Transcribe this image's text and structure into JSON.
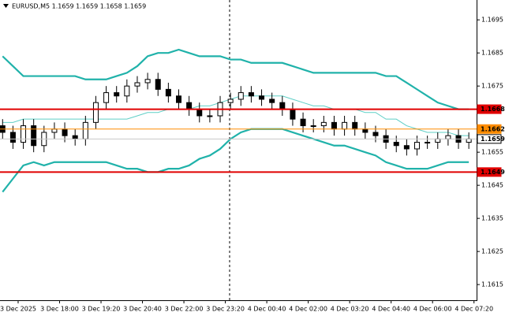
{
  "chart_data": {
    "type": "candlestick",
    "title": "EURUSD,M5  1.1659 1.1659 1.1658 1.1659",
    "x": [
      0,
      4,
      8,
      12,
      16,
      20,
      24,
      28,
      32,
      36,
      40,
      44,
      48,
      52,
      56,
      60,
      64,
      68,
      72,
      76,
      80,
      84,
      88,
      92,
      96,
      100,
      104,
      108,
      112,
      116,
      120,
      124,
      128,
      132,
      136,
      140,
      144,
      148,
      152,
      156,
      160,
      164,
      168,
      172,
      176,
      180
    ],
    "open": [
      1.1663,
      1.1661,
      1.1658,
      1.1663,
      1.1657,
      1.1661,
      1.1662,
      1.166,
      1.1659,
      1.1664,
      1.167,
      1.1673,
      1.1672,
      1.1675,
      1.1676,
      1.1677,
      1.1674,
      1.1672,
      1.167,
      1.1668,
      1.1666,
      1.1666,
      1.167,
      1.1671,
      1.1673,
      1.1672,
      1.1671,
      1.167,
      1.1668,
      1.1665,
      1.1663,
      1.1663,
      1.1664,
      1.1662,
      1.1664,
      1.1662,
      1.1661,
      1.166,
      1.1658,
      1.1657,
      1.1656,
      1.1658,
      1.1658,
      1.1659,
      1.166,
      1.1658
    ],
    "high": [
      1.1665,
      1.1663,
      1.1665,
      1.1665,
      1.1663,
      1.1664,
      1.1664,
      1.1662,
      1.1666,
      1.1672,
      1.1675,
      1.1675,
      1.1677,
      1.1678,
      1.1679,
      1.1679,
      1.1676,
      1.1674,
      1.1672,
      1.167,
      1.1668,
      1.1672,
      1.1673,
      1.1675,
      1.1675,
      1.1674,
      1.1673,
      1.1672,
      1.167,
      1.1667,
      1.1665,
      1.1666,
      1.1666,
      1.1666,
      1.1666,
      1.1664,
      1.1663,
      1.1662,
      1.166,
      1.1659,
      1.166,
      1.166,
      1.1661,
      1.1662,
      1.1662,
      1.1661
    ],
    "low": [
      1.1659,
      1.1656,
      1.1656,
      1.1655,
      1.1655,
      1.1659,
      1.1658,
      1.1657,
      1.1657,
      1.1662,
      1.1668,
      1.167,
      1.167,
      1.1673,
      1.1674,
      1.1672,
      1.167,
      1.1668,
      1.1666,
      1.1664,
      1.1664,
      1.1664,
      1.1668,
      1.1669,
      1.167,
      1.1669,
      1.1668,
      1.1666,
      1.1663,
      1.1661,
      1.1661,
      1.1661,
      1.166,
      1.166,
      1.166,
      1.1659,
      1.1658,
      1.1656,
      1.1655,
      1.1654,
      1.1654,
      1.1656,
      1.1656,
      1.1657,
      1.1656,
      1.1656
    ],
    "close": [
      1.1661,
      1.1658,
      1.1663,
      1.1657,
      1.1661,
      1.1662,
      1.166,
      1.1659,
      1.1664,
      1.167,
      1.1673,
      1.1672,
      1.1675,
      1.1676,
      1.1677,
      1.1674,
      1.1672,
      1.167,
      1.1668,
      1.1666,
      1.1666,
      1.167,
      1.1671,
      1.1673,
      1.1672,
      1.1671,
      1.167,
      1.1668,
      1.1665,
      1.1663,
      1.1663,
      1.1664,
      1.1662,
      1.1664,
      1.1662,
      1.1661,
      1.166,
      1.1658,
      1.1657,
      1.1656,
      1.1658,
      1.1658,
      1.1659,
      1.166,
      1.1658,
      1.1659
    ],
    "bull_color": "#ffffff",
    "bear_color": "#000000",
    "series": [
      {
        "color": "#20b2aa",
        "width": 2.2,
        "values": [
          1.1684,
          1.1681,
          1.1678,
          1.1678,
          1.1678,
          1.1678,
          1.1678,
          1.1678,
          1.1677,
          1.1677,
          1.1677,
          1.1678,
          1.1679,
          1.1681,
          1.1684,
          1.1685,
          1.1685,
          1.1686,
          1.1685,
          1.1684,
          1.1684,
          1.1684,
          1.1683,
          1.1683,
          1.1682,
          1.1682,
          1.1682,
          1.1682,
          1.1681,
          1.168,
          1.1679,
          1.1679,
          1.1679,
          1.1679,
          1.1679,
          1.1679,
          1.1679,
          1.1678,
          1.1678,
          1.1676,
          1.1674,
          1.1672,
          1.167,
          1.1669,
          1.1668,
          1.1668
        ]
      },
      {
        "color": "#5fcfc6",
        "width": 1,
        "values": [
          1.1664,
          1.1664,
          1.1665,
          1.1665,
          1.1665,
          1.1665,
          1.1665,
          1.1665,
          1.1665,
          1.1665,
          1.1665,
          1.1665,
          1.1665,
          1.1666,
          1.1667,
          1.1667,
          1.1668,
          1.1668,
          1.1668,
          1.1669,
          1.1669,
          1.167,
          1.1671,
          1.1672,
          1.1672,
          1.1672,
          1.1672,
          1.1672,
          1.1671,
          1.167,
          1.1669,
          1.1669,
          1.1668,
          1.1668,
          1.1668,
          1.1667,
          1.1667,
          1.1665,
          1.1665,
          1.1663,
          1.1662,
          1.1661,
          1.1661,
          1.1661,
          1.166,
          1.166
        ]
      },
      {
        "color": "#20b2aa",
        "width": 2.2,
        "values": [
          1.1643,
          1.1647,
          1.1651,
          1.1652,
          1.1651,
          1.1652,
          1.1652,
          1.1652,
          1.1652,
          1.1652,
          1.1652,
          1.1651,
          1.165,
          1.165,
          1.1649,
          1.1649,
          1.165,
          1.165,
          1.1651,
          1.1653,
          1.1654,
          1.1656,
          1.1659,
          1.1661,
          1.1662,
          1.1662,
          1.1662,
          1.1662,
          1.1661,
          1.166,
          1.1659,
          1.1658,
          1.1657,
          1.1657,
          1.1656,
          1.1655,
          1.1654,
          1.1652,
          1.1651,
          1.165,
          1.165,
          1.165,
          1.1651,
          1.1652,
          1.1652,
          1.1652
        ]
      }
    ],
    "levels": [
      {
        "value": 1.1668,
        "color": "#e00000",
        "box_color": "#e00000"
      },
      {
        "value": 1.1662,
        "color": "#ff8c00",
        "box_color": "#ff8c00"
      },
      {
        "value": 1.1659,
        "color": "#c8c8c8",
        "box_color": "#ffffff"
      },
      {
        "value": 1.1649,
        "color": "#e00000",
        "box_color": "#e00000"
      }
    ],
    "xlim": [
      -1,
      183
    ],
    "xticks": [
      {
        "value": 6,
        "label": "3 Dec 2025"
      },
      {
        "value": 22,
        "label": "3 Dec 18:00"
      },
      {
        "value": 38,
        "label": "3 Dec 19:20"
      },
      {
        "value": 54,
        "label": "3 Dec 20:40"
      },
      {
        "value": 70,
        "label": "3 Dec 22:00"
      },
      {
        "value": 86,
        "label": "3 Dec 23:20"
      },
      {
        "value": 102,
        "label": "4 Dec 00:40"
      },
      {
        "value": 118,
        "label": "4 Dec 02:00"
      },
      {
        "value": 134,
        "label": "4 Dec 03:20"
      },
      {
        "value": 150,
        "label": "4 Dec 04:40"
      },
      {
        "value": 166,
        "label": "4 Dec 06:00"
      },
      {
        "value": 182,
        "label": "4 Dec 07:20"
      }
    ],
    "ylim": [
      1.16105,
      1.1701
    ],
    "yticks": [
      1.1615,
      1.1625,
      1.1635,
      1.1645,
      1.1655,
      1.1675,
      1.1685,
      1.1695
    ]
  }
}
